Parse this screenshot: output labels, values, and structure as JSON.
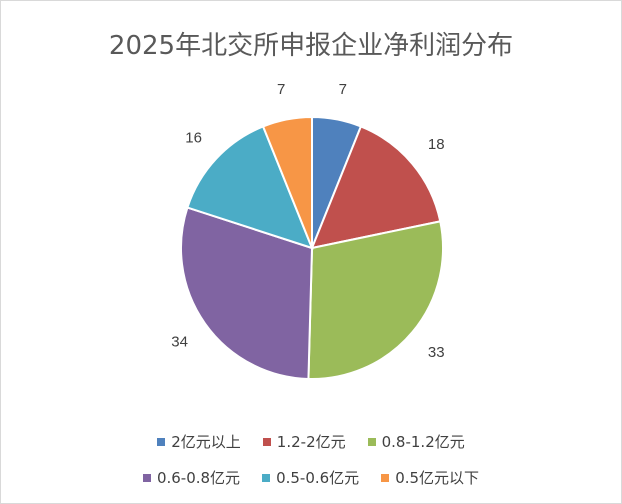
{
  "chart_data": {
    "type": "pie",
    "title": "2025年北交所申报企业净利润分布",
    "categories": [
      "2亿元以上",
      "1.2-2亿元",
      "0.8-1.2亿元",
      "0.6-0.8亿元",
      "0.5-0.6亿元",
      "0.5亿元以下"
    ],
    "values": [
      7,
      18,
      33,
      34,
      16,
      7
    ],
    "colors": [
      "#4f81bd",
      "#c0504d",
      "#9bbb59",
      "#8064a2",
      "#4bacc6",
      "#f79646"
    ],
    "legend_position": "bottom",
    "data_labels": true
  }
}
